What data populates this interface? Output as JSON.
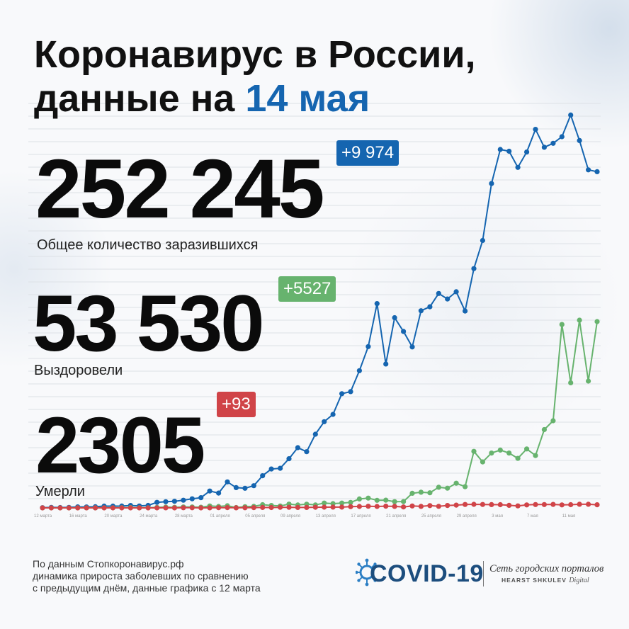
{
  "title": {
    "line1": "Коронавирус в России,",
    "line2_prefix": "данные на ",
    "line2_date": "14 мая"
  },
  "stats": {
    "cases": {
      "value": "252 245",
      "delta": "+9 974",
      "label": "Общее количество заразившихся"
    },
    "recovered": {
      "value": "53 530",
      "delta": "+5527",
      "label": "Выздоровели"
    },
    "deaths": {
      "value": "2305",
      "delta": "+93",
      "label": "Умерли"
    }
  },
  "footer": {
    "line1": "По данным Стопкоронавирус.рф",
    "line2": "динамика прироста заболевших по сравнению",
    "line3": "с предыдущим днём, данные графика с 12 марта"
  },
  "brand": {
    "covid": "COVID-19",
    "network": "Сеть городских порталов",
    "network_sub": "HEARST SHKULEV",
    "network_digital": "Digital"
  },
  "colors": {
    "cases": "#1565b0",
    "recovered": "#67b36e",
    "deaths": "#d04448",
    "accent": "#1565b0"
  },
  "chart_data": {
    "type": "line",
    "x": [
      "12 марта",
      "13 марта",
      "14 марта",
      "15 марта",
      "16 марта",
      "17 марта",
      "18 марта",
      "19 марта",
      "20 марта",
      "21 марта",
      "22 марта",
      "23 марта",
      "24 марта",
      "25 марта",
      "26 марта",
      "27 марта",
      "28 марта",
      "29 марта",
      "30 марта",
      "31 марта",
      "01 апреля",
      "02 апреля",
      "03 апреля",
      "04 апреля",
      "05 апреля",
      "06 апреля",
      "07 апреля",
      "08 апреля",
      "09 апреля",
      "10 апреля",
      "11 апреля",
      "12 апреля",
      "13 апреля",
      "14 апреля",
      "15 апреля",
      "16 апреля",
      "17 апреля",
      "18 апреля",
      "19 апреля",
      "20 апреля",
      "21 апреля",
      "22 апреля",
      "23 апреля",
      "24 апреля",
      "25 апреля",
      "26 апреля",
      "27 апреля",
      "28 апреля",
      "29 апреля",
      "30 апреля",
      "1 мая",
      "2 мая",
      "3 мая",
      "4 мая",
      "5 мая",
      "6 мая",
      "7 мая",
      "8 мая",
      "9 мая",
      "10 мая",
      "11 мая",
      "12 мая",
      "13 мая",
      "14 мая"
    ],
    "tick_labels": [
      "12 марта",
      "16 марта",
      "20 марта",
      "24 марта",
      "28 марта",
      "01 апреля",
      "05 апреля",
      "09 апреля",
      "13 апреля",
      "17 апреля",
      "21 апреля",
      "25 апреля",
      "29 апреля",
      "3 мая",
      "7 мая",
      "11 мая"
    ],
    "tick_indices": [
      0,
      4,
      8,
      12,
      16,
      20,
      24,
      28,
      32,
      36,
      40,
      44,
      48,
      52,
      56,
      60
    ],
    "ylim": [
      0,
      12000
    ],
    "grid": true,
    "series": [
      {
        "key": "cases",
        "values": [
          6,
          14,
          11,
          14,
          30,
          28,
          33,
          52,
          53,
          54,
          71,
          57,
          74,
          163,
          182,
          196,
          228,
          270,
          302,
          501,
          440,
          771,
          601,
          582,
          658,
          954,
          1154,
          1175,
          1459,
          1786,
          1667,
          2186,
          2558,
          2774,
          3388,
          3448,
          4070,
          4785,
          6060,
          4268,
          5642,
          5236,
          4774,
          5849,
          5966,
          6361,
          6198,
          6411,
          5841,
          7099,
          7933,
          9623,
          10633,
          10581,
          10102,
          10559,
          11231,
          10699,
          10817,
          11012,
          11656,
          10899,
          10028,
          9974
        ]
      },
      {
        "key": "recovered",
        "values": [
          0,
          0,
          0,
          1,
          2,
          3,
          3,
          5,
          5,
          6,
          10,
          5,
          5,
          14,
          24,
          17,
          27,
          28,
          18,
          56,
          41,
          62,
          10,
          35,
          44,
          95,
          72,
          57,
          112,
          87,
          109,
          88,
          143,
          127,
          143,
          161,
          264,
          290,
          225,
          230,
          184,
          186,
          432,
          464,
          448,
          611,
          585,
          732,
          629,
          1677,
          1364,
          1626,
          1714,
          1626,
          1469,
          1748,
          1554,
          2322,
          2585,
          5441,
          3711,
          5569,
          3762,
          5527
        ]
      },
      {
        "key": "deaths",
        "values": [
          0,
          0,
          0,
          0,
          0,
          0,
          1,
          0,
          0,
          0,
          0,
          0,
          1,
          0,
          2,
          0,
          4,
          4,
          1,
          2,
          7,
          8,
          3,
          4,
          9,
          13,
          11,
          16,
          17,
          12,
          12,
          18,
          22,
          24,
          24,
          36,
          41,
          48,
          42,
          51,
          45,
          28,
          57,
          44,
          68,
          47,
          72,
          82,
          101,
          105,
          101,
          96,
          95,
          76,
          58,
          88,
          98,
          98,
          104,
          88,
          94,
          107,
          107,
          93
        ]
      }
    ]
  }
}
